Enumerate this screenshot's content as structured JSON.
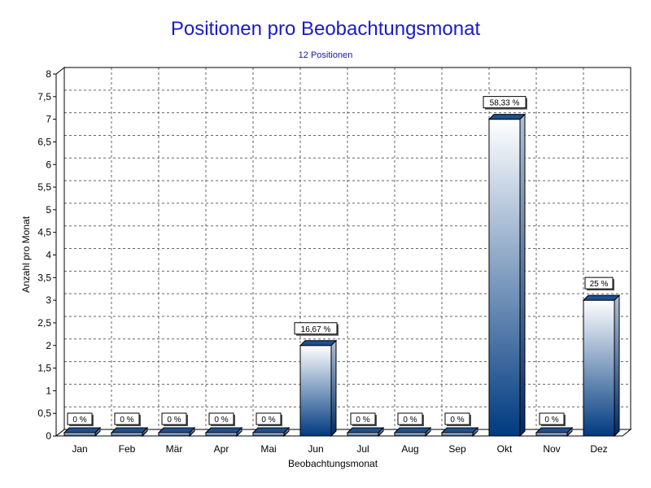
{
  "chart_data": {
    "type": "bar",
    "title": "Positionen pro Beobachtungsmonat",
    "subtitle": "12 Positionen",
    "xlabel": "Beobachtungsmonat",
    "ylabel": "Anzahl pro Monat",
    "categories": [
      "Jan",
      "Feb",
      "Mär",
      "Apr",
      "Mai",
      "Jun",
      "Jul",
      "Aug",
      "Sep",
      "Okt",
      "Nov",
      "Dez"
    ],
    "values": [
      0,
      0,
      0,
      0,
      0,
      2,
      0,
      0,
      0,
      7,
      0,
      3
    ],
    "data_labels": [
      "0 %",
      "0 %",
      "0 %",
      "0 %",
      "0 %",
      "16,67 %",
      "0 %",
      "0 %",
      "0 %",
      "58,33 %",
      "0 %",
      "25 %"
    ],
    "ylim": [
      0,
      8
    ],
    "yticks": [
      "0",
      "0,5",
      "1",
      "1,5",
      "2",
      "2,5",
      "3",
      "3,5",
      "4",
      "4,5",
      "5",
      "5,5",
      "6",
      "6,5",
      "7",
      "7,5",
      "8"
    ],
    "grid": true,
    "colors": {
      "bar_top": "#ffffff",
      "bar_bottom": "#003a80",
      "title": "#1a1acc"
    }
  }
}
